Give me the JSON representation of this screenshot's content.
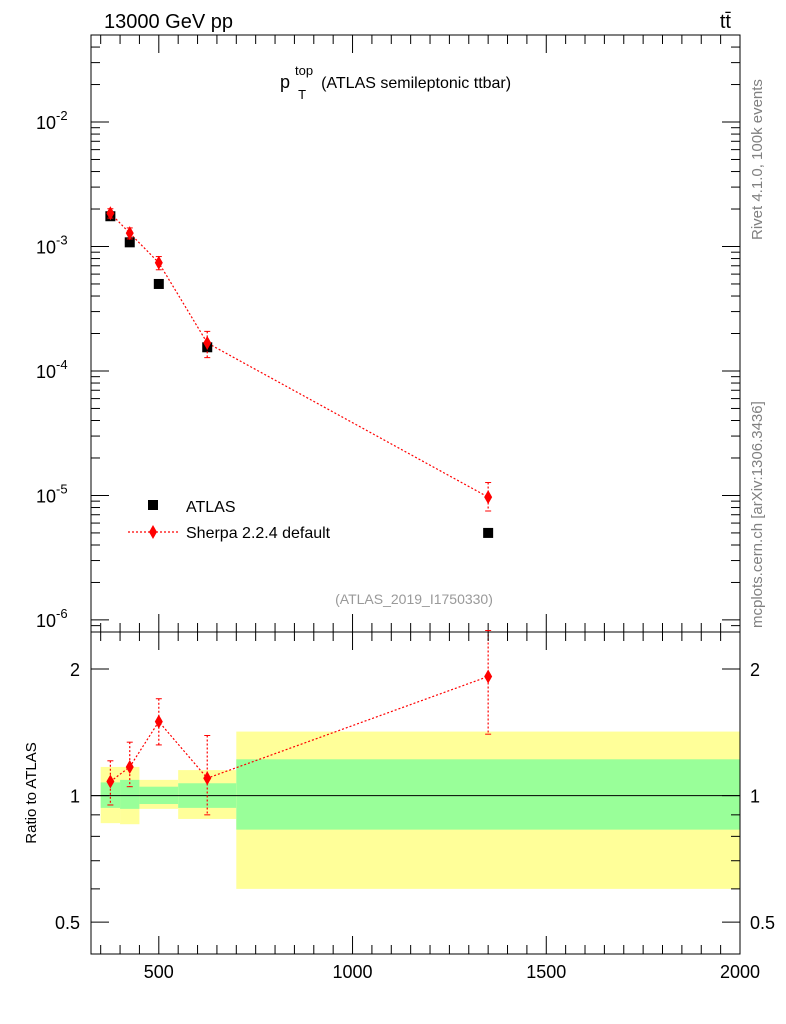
{
  "header": {
    "energy_label": "13000 GeV pp",
    "process_label": "tt̄"
  },
  "side_labels": {
    "rivet": "Rivet 4.1.0,  100k events",
    "source": "mcplots.cern.ch [arXiv:1306.3436]"
  },
  "colors": {
    "data": "#000000",
    "mc": "#ff0000",
    "band_inner": "#99ff99",
    "band_outer": "#ffff99"
  },
  "chart_data": [
    {
      "type": "scatter",
      "panel": "main",
      "title_main": "p",
      "title_sup": "top",
      "title_sub": "T",
      "title_rest": "(ATLAS semileptonic ttbar)",
      "analysis_label": "(ATLAS_2019_I1750330)",
      "yscale": "log",
      "xlim": [
        325,
        2000
      ],
      "ylim": [
        8e-07,
        0.05
      ],
      "y_ticks": [
        {
          "value": 0.01,
          "base": "10",
          "exp": "-2"
        },
        {
          "value": 0.001,
          "base": "10",
          "exp": "-3"
        },
        {
          "value": 0.0001,
          "base": "10",
          "exp": "-4"
        },
        {
          "value": 1e-05,
          "base": "10",
          "exp": "-5"
        },
        {
          "value": 1e-06,
          "base": "10",
          "exp": "-6"
        }
      ],
      "legend_position": "bottom-left",
      "series": [
        {
          "name": "ATLAS",
          "marker": "square",
          "x": [
            375,
            425,
            500,
            625,
            1350
          ],
          "y": [
            0.00175,
            0.00108,
            0.0005,
            0.000155,
            5e-06
          ]
        },
        {
          "name": "Sherpa 2.2.4 default",
          "marker": "diamond",
          "x": [
            375,
            425,
            500,
            625,
            1350
          ],
          "y": [
            0.00185,
            0.00128,
            0.00074,
            0.000168,
            9.7e-06
          ],
          "yerr_low": [
            0.00016,
            0.00013,
            9e-05,
            4e-05,
            2.2e-06
          ],
          "yerr_high": [
            0.00016,
            0.00013,
            9e-05,
            4e-05,
            3e-06
          ]
        }
      ]
    },
    {
      "type": "scatter",
      "panel": "ratio",
      "ylabel": "Ratio to ATLAS",
      "yscale": "log",
      "xlim": [
        325,
        2000
      ],
      "ylim": [
        0.42,
        2.45
      ],
      "y_ticks": [
        {
          "value": 2,
          "label": "2"
        },
        {
          "value": 1,
          "label": "1"
        },
        {
          "value": 0.5,
          "label": "0.5"
        }
      ],
      "x_ticks": [
        {
          "value": 500,
          "label": "500"
        },
        {
          "value": 1000,
          "label": "1000"
        },
        {
          "value": 1500,
          "label": "1500"
        },
        {
          "value": 2000,
          "label": "2000"
        }
      ],
      "bands": [
        {
          "xlow": 350,
          "xhigh": 400,
          "inner": [
            0.935,
            1.075
          ],
          "outer": [
            0.86,
            1.17
          ]
        },
        {
          "xlow": 400,
          "xhigh": 450,
          "inner": [
            0.93,
            1.09
          ],
          "outer": [
            0.855,
            1.17
          ]
        },
        {
          "xlow": 450,
          "xhigh": 550,
          "inner": [
            0.955,
            1.05
          ],
          "outer": [
            0.93,
            1.09
          ]
        },
        {
          "xlow": 550,
          "xhigh": 700,
          "inner": [
            0.935,
            1.07
          ],
          "outer": [
            0.88,
            1.15
          ]
        },
        {
          "xlow": 700,
          "xhigh": 2000,
          "inner": [
            0.83,
            1.22
          ],
          "outer": [
            0.6,
            1.42
          ]
        }
      ],
      "series": [
        {
          "name": "Sherpa 2.2.4 default / ATLAS",
          "x": [
            375,
            425,
            500,
            625,
            1350
          ],
          "y": [
            1.08,
            1.17,
            1.5,
            1.1,
            1.92
          ],
          "yerr_low": [
            0.13,
            0.12,
            0.18,
            0.2,
            0.52
          ],
          "yerr_high": [
            0.13,
            0.17,
            0.2,
            0.29,
            0.55
          ]
        }
      ]
    }
  ]
}
